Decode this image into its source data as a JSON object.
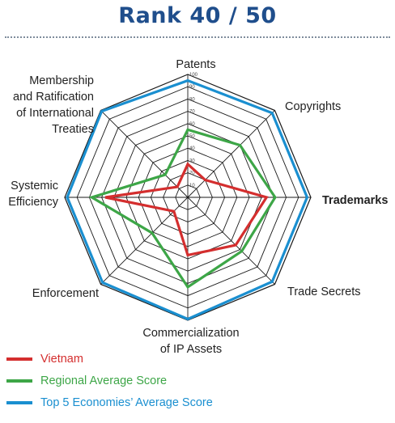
{
  "header": {
    "title": "Rank 40 / 50"
  },
  "colors": {
    "title": "#1f4e8c",
    "grid": "#1a1a1a"
  },
  "chart_data": {
    "type": "radar",
    "axes": [
      "Patents",
      "Copyrights",
      "Trademarks",
      "Trade Secrets",
      "Commercialization of IP Assets",
      "Enforcement",
      "Systemic Efficiency",
      "Membership and Ratification of International Treaties"
    ],
    "axis_label_lines": [
      [
        "Patents"
      ],
      [
        "Copyrights"
      ],
      [
        "Trademarks"
      ],
      [
        "Trade Secrets"
      ],
      [
        "Commercialization",
        "of IP Assets"
      ],
      [
        "Enforcement"
      ],
      [
        "Systemic",
        "Efficiency"
      ],
      [
        "Membership",
        "and Ratification",
        "of International",
        "Treaties"
      ]
    ],
    "bold_axis": "Trademarks",
    "rlim": [
      0,
      100
    ],
    "ticks": [
      10,
      20,
      30,
      40,
      50,
      60,
      70,
      80,
      90,
      100
    ],
    "grid": true,
    "legend_position": "bottom-left",
    "series": [
      {
        "name": "Vietnam",
        "color": "#d42e2e",
        "values": [
          27,
          20,
          64,
          55,
          47,
          16,
          67,
          12
        ]
      },
      {
        "name": "Regional Average Score",
        "color": "#3da647",
        "values": [
          55,
          60,
          71,
          62,
          73,
          41,
          78,
          26
        ]
      },
      {
        "name": "Top 5 Economies’ Average Score",
        "color": "#1a8fd0",
        "values": [
          95,
          97,
          97,
          97,
          99,
          98,
          98,
          99
        ]
      }
    ]
  }
}
